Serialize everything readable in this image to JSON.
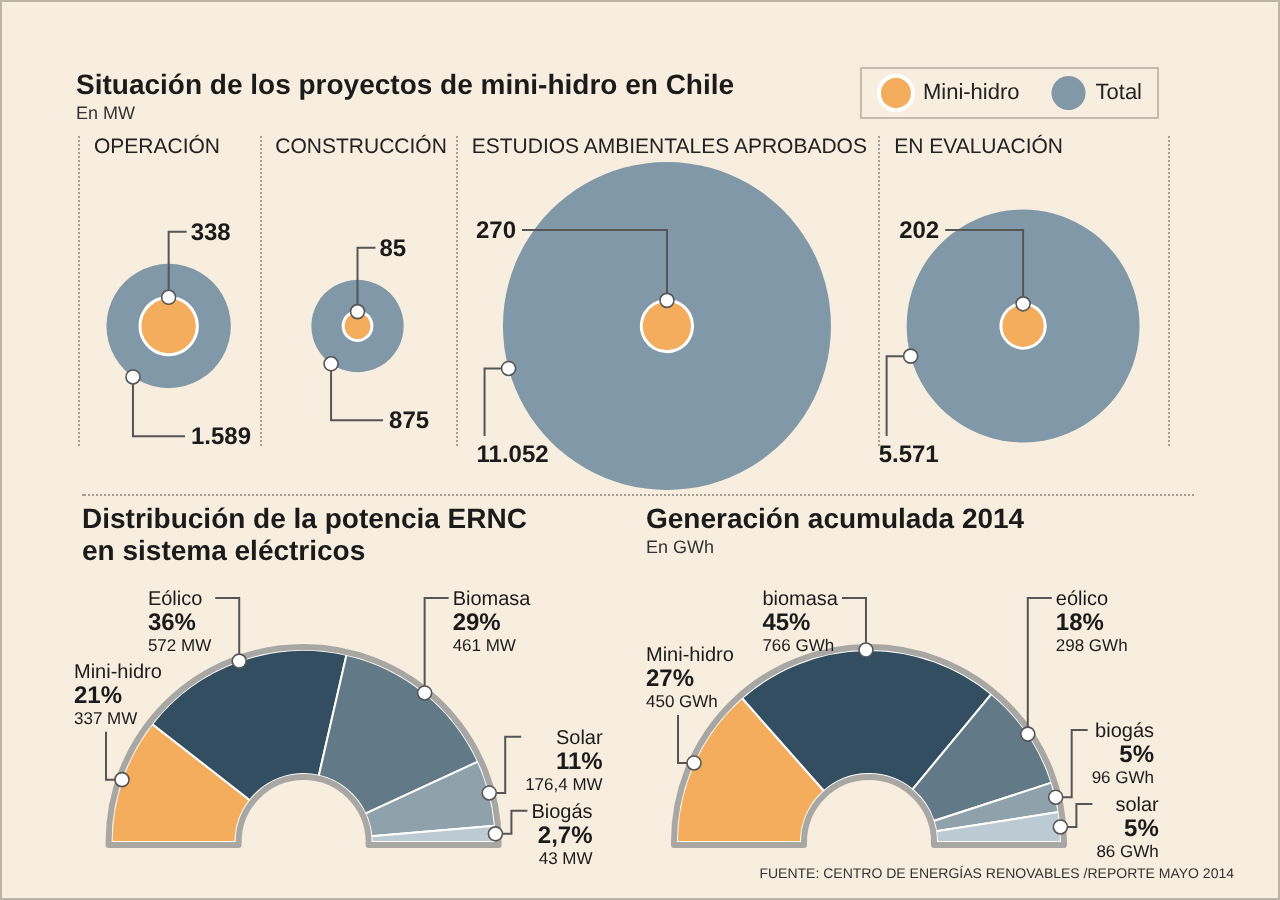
{
  "chart_data": [
    {
      "type": "other",
      "title": "Situación de los proyectos de mini-hidro en Chile",
      "subtitle": "En MW",
      "categories": [
        "OPERACIÓN",
        "CONSTRUCCIÓN",
        "ESTUDIOS AMBIENTALES APROBADOS",
        "EN EVALUACIÓN"
      ],
      "series": [
        {
          "name": "Mini-hidro",
          "color": "#f4ad5d",
          "values": [
            338,
            85,
            270,
            202
          ],
          "value_labels": [
            "338",
            "85",
            "270",
            "202"
          ]
        },
        {
          "name": "Total",
          "color": "#8098a7",
          "values": [
            1589,
            875,
            11052,
            5571
          ],
          "value_labels": [
            "1.589",
            "875",
            "11.052",
            "5.571"
          ]
        }
      ],
      "legend": "top right"
    },
    {
      "type": "donut",
      "title": "Distribución de la potencia ERNC en sistema eléctricos",
      "categories": [
        "Mini-hidro",
        "Eólico",
        "Biomasa",
        "Solar",
        "Biogás"
      ],
      "values": [
        21,
        36,
        29,
        11,
        2.7
      ],
      "value_labels": [
        "21%\n337 MW",
        "36%\n572 MW",
        "29%\n461 MW",
        "11%\n176,4 MW",
        "2,7%\n43 MW"
      ],
      "colors": [
        "#f4ad5d",
        "#324e60",
        "#627987",
        "#8fa2ac",
        "#bccad3"
      ]
    },
    {
      "type": "donut",
      "title": "Generación acumulada 2014",
      "subtitle": "En GWh",
      "categories": [
        "Mini-hidro",
        "biomasa",
        "eólico",
        "biogás",
        "solar"
      ],
      "values": [
        27,
        45,
        18,
        5,
        5
      ],
      "value_labels": [
        "27%\n450 GWh",
        "45%\n766 GWh",
        "18%\n298 GWh",
        "5%\n96 GWh",
        "5%\n86 GWh"
      ],
      "colors": [
        "#f4ad5d",
        "#324e60",
        "#627987",
        "#8fa2ac",
        "#bccad3"
      ],
      "annotations": [
        "FUENTE: CENTRO DE ENERGÍAS RENOVABLES /REPORTE MAYO 2014"
      ]
    }
  ]
}
